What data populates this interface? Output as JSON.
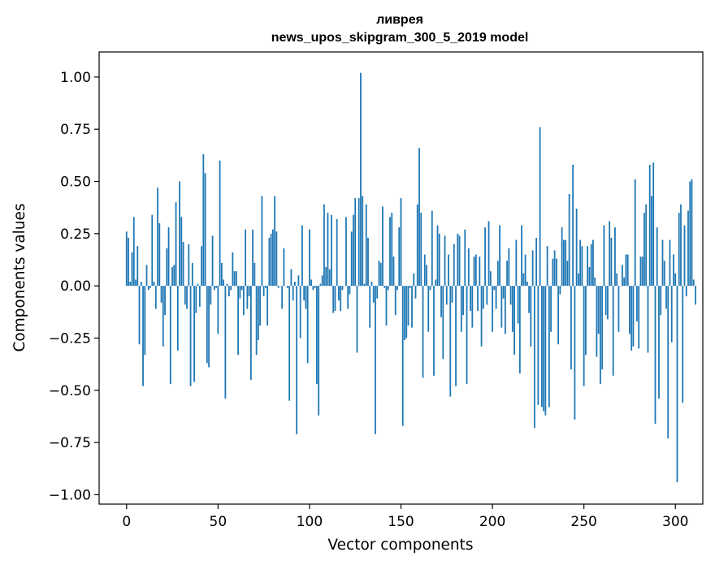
{
  "chart_data": {
    "type": "bar",
    "title_lines": [
      "ливрея",
      "news_upos_skipgram_300_5_2019 model"
    ],
    "xlabel": "Vector components",
    "ylabel": "Components values",
    "xlim": [
      -15,
      315
    ],
    "ylim": [
      -1.045,
      1.12
    ],
    "xticks": [
      0,
      50,
      100,
      150,
      200,
      250,
      300
    ],
    "xtick_labels": [
      "0",
      "50",
      "100",
      "150",
      "200",
      "250",
      "300"
    ],
    "yticks": [
      1.0,
      0.75,
      0.5,
      0.25,
      0.0,
      -0.25,
      -0.5,
      -0.75,
      -1.0
    ],
    "ytick_labels": [
      "1.00",
      "0.75",
      "0.50",
      "0.25",
      "0.00",
      "−0.25",
      "−0.50",
      "−0.75",
      "−1.00"
    ],
    "grid": false,
    "bar_color": "#1f77b4",
    "values": [
      0.26,
      0.23,
      0.02,
      0.16,
      0.33,
      0.03,
      0.19,
      -0.28,
      0.02,
      -0.48,
      -0.33,
      0.1,
      -0.02,
      -0.01,
      0.34,
      0.02,
      -0.11,
      0.47,
      0.3,
      -0.08,
      -0.29,
      -0.14,
      0.18,
      0.28,
      -0.47,
      0.09,
      0.1,
      0.4,
      -0.31,
      0.5,
      0.33,
      0.21,
      -0.09,
      -0.11,
      0.2,
      -0.48,
      0.11,
      -0.46,
      -0.13,
      0.01,
      -0.1,
      0.19,
      0.63,
      0.54,
      -0.37,
      -0.39,
      -0.09,
      0.24,
      -0.02,
      -0.01,
      -0.23,
      0.6,
      0.11,
      0.03,
      -0.54,
      0.01,
      -0.05,
      -0.02,
      0.16,
      0.07,
      0.07,
      -0.33,
      -0.06,
      -0.02,
      -0.14,
      0.27,
      -0.11,
      -0.05,
      -0.45,
      0.27,
      0.11,
      -0.33,
      -0.26,
      -0.19,
      0.43,
      -0.05,
      -0.01,
      -0.19,
      0.23,
      0.25,
      0.27,
      0.43,
      0.26,
      -0.01,
      0.0,
      -0.11,
      0.18,
      0.0,
      -0.01,
      -0.55,
      0.08,
      -0.07,
      0.02,
      -0.71,
      0.05,
      -0.25,
      0.29,
      -0.07,
      -0.11,
      -0.37,
      0.27,
      0.03,
      -0.02,
      -0.01,
      -0.47,
      -0.62,
      0.01,
      0.05,
      0.39,
      0.09,
      0.35,
      0.08,
      0.34,
      -0.13,
      -0.12,
      0.32,
      -0.07,
      -0.12,
      -0.02,
      0.0,
      0.33,
      -0.11,
      -0.04,
      0.26,
      0.34,
      0.42,
      -0.32,
      0.42,
      1.02,
      0.43,
      0.01,
      0.39,
      0.23,
      -0.2,
      0.02,
      -0.08,
      -0.71,
      -0.06,
      0.12,
      0.11,
      0.38,
      -0.01,
      -0.19,
      -0.02,
      0.33,
      0.35,
      0.14,
      -0.14,
      -0.02,
      0.28,
      0.42,
      -0.67,
      -0.26,
      -0.25,
      -0.19,
      -0.01,
      -0.2,
      0.06,
      -0.06,
      0.39,
      0.66,
      0.35,
      -0.44,
      0.15,
      0.1,
      -0.22,
      -0.02,
      0.36,
      -0.43,
      0.03,
      0.29,
      0.25,
      -0.15,
      -0.35,
      0.24,
      -0.09,
      0.15,
      -0.53,
      -0.08,
      0.2,
      -0.48,
      0.25,
      0.24,
      -0.22,
      -0.14,
      0.27,
      -0.47,
      0.18,
      -0.12,
      -0.2,
      0.14,
      0.15,
      -0.12,
      0.14,
      -0.29,
      -0.11,
      0.28,
      -0.09,
      0.31,
      0.07,
      -0.22,
      -0.02,
      -0.11,
      0.12,
      0.29,
      -0.2,
      -0.06,
      -0.23,
      0.12,
      0.18,
      -0.09,
      -0.22,
      -0.33,
      0.22,
      -0.18,
      -0.42,
      0.29,
      0.06,
      0.15,
      0.02,
      -0.13,
      -0.29,
      0.17,
      -0.68,
      0.23,
      -0.57,
      0.76,
      -0.58,
      -0.6,
      -0.62,
      0.19,
      -0.58,
      -0.22,
      0.13,
      0.17,
      0.13,
      -0.28,
      -0.04,
      0.28,
      0.22,
      0.22,
      0.12,
      0.44,
      -0.4,
      0.58,
      -0.64,
      0.37,
      0.06,
      0.22,
      0.19,
      -0.48,
      -0.33,
      0.19,
      0.09,
      0.2,
      0.22,
      0.04,
      -0.34,
      -0.23,
      -0.47,
      -0.4,
      0.29,
      -0.14,
      -0.16,
      0.31,
      0.23,
      -0.43,
      0.28,
      0.06,
      -0.22,
      0.0,
      0.1,
      0.04,
      0.15,
      0.15,
      -0.23,
      -0.31,
      -0.29,
      0.51,
      -0.17,
      -0.3,
      0.14,
      0.14,
      0.35,
      0.39,
      -0.32,
      0.58,
      0.43,
      0.59,
      -0.66,
      0.28,
      -0.54,
      -0.14,
      0.22,
      0.12,
      -0.11,
      -0.73,
      0.22,
      -0.27,
      0.15,
      0.06,
      -0.94,
      0.35,
      0.39,
      -0.56,
      0.29,
      -0.05,
      0.36,
      0.5,
      0.51,
      0.03,
      -0.09
    ]
  }
}
